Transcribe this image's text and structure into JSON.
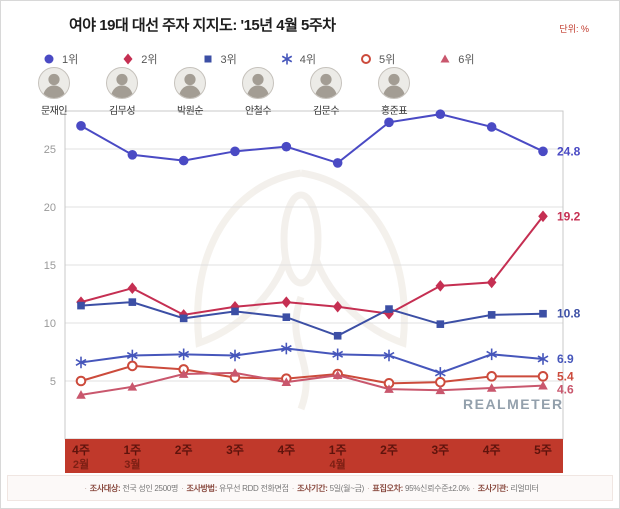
{
  "header": {
    "title": "여야 19대 대선 주자 지지도: '15년 4월 5주차",
    "unit": "단위: %"
  },
  "candidates": [
    {
      "rank": "1위",
      "name": "문재인"
    },
    {
      "rank": "2위",
      "name": "김무성"
    },
    {
      "rank": "3위",
      "name": "박원순"
    },
    {
      "rank": "4위",
      "name": "안철수"
    },
    {
      "rank": "5위",
      "name": "김문수"
    },
    {
      "rank": "6위",
      "name": "홍준표"
    }
  ],
  "watermark": "REALMETER",
  "colors": {
    "band": "#c0392b",
    "band_week_text": "#5e130c",
    "band_month_text": "#7c1f14",
    "grid": "#e0e0e0",
    "plot_border": "#c9c9c9",
    "ytick_text": "#999999",
    "watermark_text": "#93a0ac"
  },
  "chart_data": {
    "type": "line",
    "categories": [
      "4주",
      "1주",
      "2주",
      "3주",
      "4주",
      "1주",
      "2주",
      "3주",
      "4주",
      "5주"
    ],
    "month_labels": [
      "2월",
      "3월",
      "",
      "",
      "",
      "4월",
      "",
      "",
      "",
      ""
    ],
    "ylim": [
      0,
      30
    ],
    "yticks": [
      5,
      10,
      15,
      20,
      25
    ],
    "grid": true,
    "legend_position": "top",
    "series": [
      {
        "key": "moon-jaein",
        "rank": "1위",
        "name": "문재인",
        "marker": "circle",
        "color": "#4a4ac4",
        "values": [
          27.0,
          24.5,
          24.0,
          24.8,
          25.2,
          23.8,
          27.3,
          28.0,
          26.9,
          24.8
        ],
        "end_label": "24.8"
      },
      {
        "key": "kim-moosung",
        "rank": "2위",
        "name": "김무성",
        "marker": "diamond",
        "color": "#c52f52",
        "values": [
          11.8,
          13.0,
          10.7,
          11.4,
          11.8,
          11.4,
          10.8,
          13.2,
          13.5,
          19.2
        ],
        "end_label": "19.2"
      },
      {
        "key": "park-wonsoon",
        "rank": "3위",
        "name": "박원순",
        "marker": "square",
        "color": "#3c4fa5",
        "values": [
          11.5,
          11.8,
          10.4,
          11.0,
          10.5,
          8.9,
          11.2,
          9.9,
          10.7,
          10.8
        ],
        "end_label": "10.8"
      },
      {
        "key": "ahn-cheolsoo",
        "rank": "4위",
        "name": "안철수",
        "marker": "asterisk",
        "color": "#4656bb",
        "values": [
          6.6,
          7.2,
          7.3,
          7.2,
          7.8,
          7.3,
          7.2,
          5.7,
          7.3,
          6.9
        ],
        "end_label": "6.9"
      },
      {
        "key": "kim-moonsoo",
        "rank": "5위",
        "name": "김문수",
        "marker": "circle-open",
        "color": "#cc4b3c",
        "values": [
          5.0,
          6.3,
          6.0,
          5.3,
          5.2,
          5.6,
          4.8,
          4.9,
          5.4,
          5.4
        ],
        "end_label": "5.4"
      },
      {
        "key": "hong-junpyo",
        "rank": "6위",
        "name": "홍준표",
        "marker": "triangle",
        "color": "#c9576d",
        "values": [
          3.8,
          4.5,
          5.6,
          5.7,
          4.9,
          5.5,
          4.3,
          4.2,
          4.4,
          4.6
        ],
        "end_label": "4.6"
      }
    ]
  },
  "footer": {
    "items": [
      {
        "label": "조사대상:",
        "value": "전국 성인 2500명"
      },
      {
        "label": "조사방법:",
        "value": "유무선 RDD 전화면접"
      },
      {
        "label": "조사기간:",
        "value": "5일(월~금)"
      },
      {
        "label": "표집오차:",
        "value": "95%신뢰수준±2.0%"
      },
      {
        "label": "조사기관:",
        "value": "리얼미터"
      }
    ]
  }
}
